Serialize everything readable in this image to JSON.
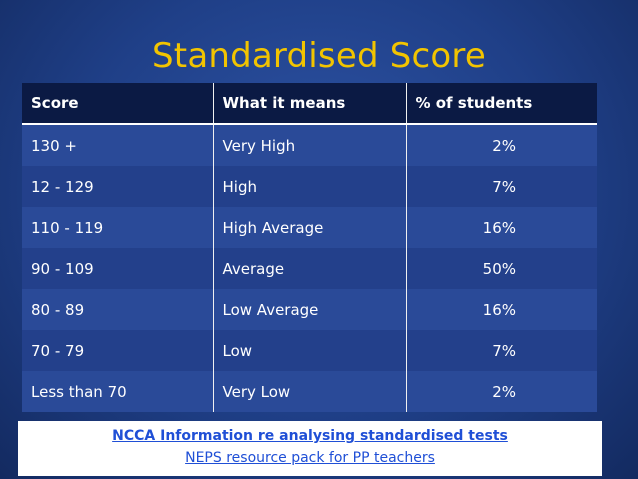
{
  "title": "Standardised Score",
  "table": {
    "headers": [
      "Score",
      "What it means",
      "% of students"
    ],
    "rows": [
      {
        "score": "130 +",
        "meaning": "Very High",
        "percent": "2%"
      },
      {
        "score": "12 - 129",
        "meaning": "High",
        "percent": "7%"
      },
      {
        "score": "110 - 119",
        "meaning": "High Average",
        "percent": "16%"
      },
      {
        "score": "90 - 109",
        "meaning": "Average",
        "percent": "50%"
      },
      {
        "score": "80 - 89",
        "meaning": "Low Average",
        "percent": "16%"
      },
      {
        "score": "70 - 79",
        "meaning": "Low",
        "percent": "7%"
      },
      {
        "score": "Less than 70",
        "meaning": "Very Low",
        "percent": "2%"
      }
    ]
  },
  "links": [
    "NCCA Information re analysing standardised tests",
    "NEPS resource pack for PP teachers"
  ],
  "colors": {
    "title": "#f2c400",
    "header_bg": "#0b1a44",
    "row_bg": "#2a4a98",
    "link": "#1f4fd6"
  }
}
